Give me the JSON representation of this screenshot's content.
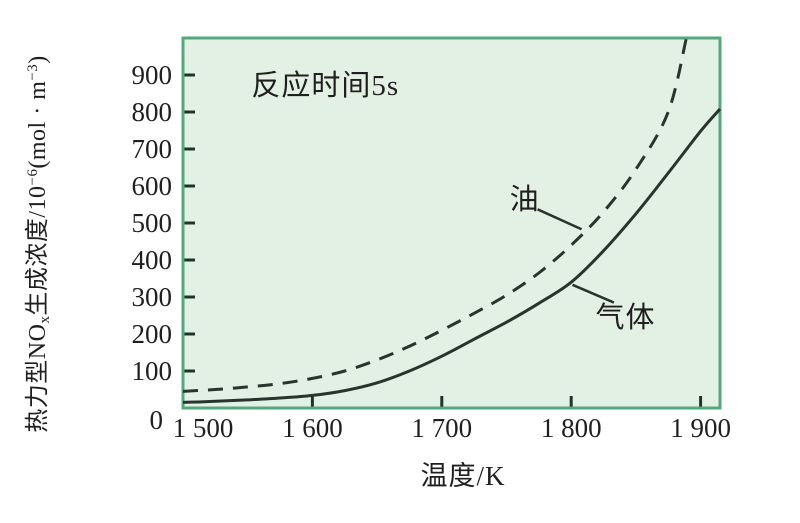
{
  "chart_data": {
    "type": "line",
    "title": "",
    "xlabel": "温度/K",
    "ylabel": "热力型NOₓ生成浓度/10⁻⁶(mol·m⁻³)",
    "ylabel_parts": [
      {
        "t": "热力型NO"
      },
      {
        "t": "x",
        "v": "sub"
      },
      {
        "t": "生成浓度/10"
      },
      {
        "t": "−6",
        "v": "sup"
      },
      {
        "t": "(mol · m"
      },
      {
        "t": "−3",
        "v": "sup"
      },
      {
        "t": ")"
      }
    ],
    "x_range": [
      1500,
      1915
    ],
    "y_range": [
      0,
      1000
    ],
    "grid": false,
    "legend_position": "none",
    "x_ticks": [
      {
        "v": 1500,
        "label": "1 500"
      },
      {
        "v": 1600,
        "label": "1 600"
      },
      {
        "v": 1700,
        "label": "1 700"
      },
      {
        "v": 1800,
        "label": "1 800"
      },
      {
        "v": 1900,
        "label": "1 900"
      }
    ],
    "y_ticks": [
      {
        "v": 0,
        "label": "0"
      },
      {
        "v": 100,
        "label": "100"
      },
      {
        "v": 200,
        "label": "200"
      },
      {
        "v": 300,
        "label": "300"
      },
      {
        "v": 400,
        "label": "400"
      },
      {
        "v": 500,
        "label": "500"
      },
      {
        "v": 600,
        "label": "600"
      },
      {
        "v": 700,
        "label": "700"
      },
      {
        "v": 800,
        "label": "800"
      },
      {
        "v": 900,
        "label": "900"
      }
    ],
    "colors": {
      "plot_bg": "#e3f1e4",
      "plot_border": "#54a87e",
      "tick": "#20352a",
      "curve": "#29352c",
      "text": "#1f1f1f"
    },
    "series": [
      {
        "id": "oil",
        "name": "油",
        "style": "dashed",
        "points": [
          [
            1500,
            45
          ],
          [
            1525,
            50
          ],
          [
            1550,
            57
          ],
          [
            1575,
            66
          ],
          [
            1600,
            80
          ],
          [
            1625,
            100
          ],
          [
            1650,
            130
          ],
          [
            1675,
            167
          ],
          [
            1700,
            210
          ],
          [
            1725,
            256
          ],
          [
            1750,
            305
          ],
          [
            1775,
            365
          ],
          [
            1800,
            440
          ],
          [
            1825,
            530
          ],
          [
            1850,
            645
          ],
          [
            1875,
            800
          ],
          [
            1889,
            1000
          ]
        ]
      },
      {
        "id": "gas",
        "name": "气体",
        "style": "solid",
        "points": [
          [
            1500,
            15
          ],
          [
            1525,
            18
          ],
          [
            1550,
            22
          ],
          [
            1575,
            27
          ],
          [
            1600,
            34
          ],
          [
            1625,
            47
          ],
          [
            1650,
            68
          ],
          [
            1675,
            100
          ],
          [
            1700,
            140
          ],
          [
            1725,
            186
          ],
          [
            1750,
            232
          ],
          [
            1775,
            283
          ],
          [
            1800,
            340
          ],
          [
            1825,
            425
          ],
          [
            1850,
            525
          ],
          [
            1875,
            635
          ],
          [
            1900,
            748
          ],
          [
            1915,
            808
          ]
        ]
      }
    ],
    "annotations": [
      {
        "id": "reaction-time",
        "text": "反应时间5s",
        "pos": [
          1610,
          878
        ]
      },
      {
        "id": "oil",
        "text": "油",
        "pos": [
          1764,
          569
        ],
        "line": [
          [
            1774,
            537
          ],
          [
            1808,
            483
          ]
        ]
      },
      {
        "id": "gas",
        "text": "气体",
        "pos": [
          1842,
          252
        ],
        "line": [
          [
            1801,
            333
          ],
          [
            1833,
            285
          ]
        ]
      }
    ]
  }
}
